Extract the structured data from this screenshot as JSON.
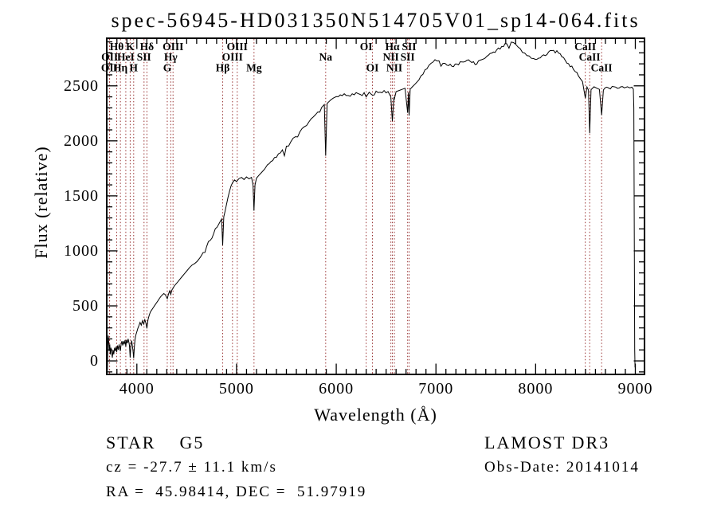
{
  "title": "spec-56945-HD031350N514705V01_sp14-064.fits",
  "footer": {
    "class_label": "STAR    G5",
    "cz": "cz = -27.7 ± 11.1 km/s",
    "ra_dec": "RA =  45.98414, DEC =  51.97919",
    "survey": "LAMOST DR3",
    "obs_date": "Obs-Date: 20141014"
  },
  "chart_data": {
    "type": "line",
    "title": "spec-56945-HD031350N514705V01_sp14-064.fits",
    "xlabel": "Wavelength (Å)",
    "ylabel": "Flux (relative)",
    "xlim": [
      3690,
      9100
    ],
    "ylim": [
      -130,
      2940
    ],
    "xticks": [
      4000,
      5000,
      6000,
      7000,
      8000,
      9000
    ],
    "yticks": [
      0,
      500,
      1000,
      1500,
      2000,
      2500
    ],
    "xminor": 100,
    "yminor": 100,
    "grid": false,
    "legend": "none",
    "line_color": "#000000",
    "frame_color": "#000000",
    "spectral_line_color": "#993333",
    "spectral_lines": [
      {
        "name": "OII",
        "wavelength": 3725,
        "row": 3
      },
      {
        "name": "OII",
        "wavelength": 3727,
        "row": 2
      },
      {
        "name": "Hθ",
        "wavelength": 3798,
        "row": 1
      },
      {
        "name": "Hη",
        "wavelength": 3835,
        "row": 3
      },
      {
        "name": "HeI",
        "wavelength": 3889,
        "row": 2
      },
      {
        "name": "K",
        "wavelength": 3933,
        "row": 1
      },
      {
        "name": "H",
        "wavelength": 3968,
        "row": 3
      },
      {
        "name": "SII",
        "wavelength": 4072,
        "row": 2
      },
      {
        "name": "Hδ",
        "wavelength": 4101,
        "row": 1
      },
      {
        "name": "G",
        "wavelength": 4305,
        "row": 3
      },
      {
        "name": "Hγ",
        "wavelength": 4340,
        "row": 2
      },
      {
        "name": "OIII",
        "wavelength": 4363,
        "row": 1
      },
      {
        "name": "Hβ",
        "wavelength": 4861,
        "row": 3
      },
      {
        "name": "OIII",
        "wavelength": 4959,
        "row": 2
      },
      {
        "name": "OIII",
        "wavelength": 5007,
        "row": 1
      },
      {
        "name": "Mg",
        "wavelength": 5175,
        "row": 3
      },
      {
        "name": "Na",
        "wavelength": 5894,
        "row": 2
      },
      {
        "name": "OI",
        "wavelength": 6300,
        "row": 1
      },
      {
        "name": "OI",
        "wavelength": 6363,
        "row": 3
      },
      {
        "name": "NII",
        "wavelength": 6548,
        "row": 2
      },
      {
        "name": "Hα",
        "wavelength": 6563,
        "row": 1
      },
      {
        "name": "NII",
        "wavelength": 6583,
        "row": 3
      },
      {
        "name": "SII",
        "wavelength": 6716,
        "row": 2
      },
      {
        "name": "SII",
        "wavelength": 6731,
        "row": 1
      },
      {
        "name": "CaII",
        "wavelength": 8498,
        "row": 1
      },
      {
        "name": "CaII",
        "wavelength": 8542,
        "row": 2
      },
      {
        "name": "CaII",
        "wavelength": 8662,
        "row": 3
      }
    ],
    "noise": [
      {
        "upto": 4000,
        "amp": 60
      },
      {
        "upto": 4500,
        "amp": 40
      },
      {
        "upto": 5000,
        "amp": 34
      },
      {
        "upto": 5900,
        "amp": 26
      },
      {
        "upto": 6800,
        "amp": 22
      },
      {
        "upto": 8400,
        "amp": 17
      },
      {
        "upto": 8985,
        "amp": 16
      },
      {
        "upto": 9100,
        "amp": 5
      }
    ],
    "spectrum_points": [
      [
        3700,
        50
      ],
      [
        3704,
        -90
      ],
      [
        3708,
        140
      ],
      [
        3713,
        230
      ],
      [
        3718,
        170
      ],
      [
        3723,
        90
      ],
      [
        3728,
        150
      ],
      [
        3734,
        60
      ],
      [
        3740,
        120
      ],
      [
        3747,
        80
      ],
      [
        3754,
        30
      ],
      [
        3761,
        100
      ],
      [
        3768,
        60
      ],
      [
        3776,
        120
      ],
      [
        3784,
        90
      ],
      [
        3792,
        130
      ],
      [
        3798,
        80
      ],
      [
        3806,
        140
      ],
      [
        3814,
        100
      ],
      [
        3822,
        150
      ],
      [
        3830,
        110
      ],
      [
        3835,
        90
      ],
      [
        3842,
        150
      ],
      [
        3850,
        180
      ],
      [
        3858,
        140
      ],
      [
        3866,
        180
      ],
      [
        3874,
        150
      ],
      [
        3882,
        190
      ],
      [
        3889,
        130
      ],
      [
        3896,
        190
      ],
      [
        3904,
        160
      ],
      [
        3912,
        200
      ],
      [
        3920,
        170
      ],
      [
        3926,
        140
      ],
      [
        3933,
        30
      ],
      [
        3940,
        140
      ],
      [
        3948,
        185
      ],
      [
        3956,
        130
      ],
      [
        3962,
        90
      ],
      [
        3968,
        25
      ],
      [
        3975,
        130
      ],
      [
        3982,
        195
      ],
      [
        3990,
        235
      ],
      [
        4000,
        265
      ],
      [
        4010,
        295
      ],
      [
        4020,
        320
      ],
      [
        4032,
        350
      ],
      [
        4044,
        325
      ],
      [
        4056,
        365
      ],
      [
        4068,
        335
      ],
      [
        4080,
        375
      ],
      [
        4090,
        345
      ],
      [
        4101,
        295
      ],
      [
        4112,
        375
      ],
      [
        4124,
        415
      ],
      [
        4136,
        445
      ],
      [
        4150,
        465
      ],
      [
        4165,
        485
      ],
      [
        4180,
        505
      ],
      [
        4195,
        525
      ],
      [
        4210,
        545
      ],
      [
        4225,
        565
      ],
      [
        4240,
        585
      ],
      [
        4255,
        600
      ],
      [
        4270,
        612
      ],
      [
        4285,
        602
      ],
      [
        4305,
        565
      ],
      [
        4318,
        610
      ],
      [
        4330,
        638
      ],
      [
        4340,
        605
      ],
      [
        4352,
        645
      ],
      [
        4363,
        660
      ],
      [
        4375,
        680
      ],
      [
        4390,
        697
      ],
      [
        4410,
        718
      ],
      [
        4430,
        740
      ],
      [
        4455,
        768
      ],
      [
        4480,
        795
      ],
      [
        4505,
        822
      ],
      [
        4530,
        850
      ],
      [
        4555,
        872
      ],
      [
        4580,
        885
      ],
      [
        4605,
        905
      ],
      [
        4635,
        940
      ],
      [
        4665,
        985
      ],
      [
        4700,
        1040
      ],
      [
        4735,
        1095
      ],
      [
        4770,
        1155
      ],
      [
        4805,
        1215
      ],
      [
        4835,
        1265
      ],
      [
        4850,
        1290
      ],
      [
        4861,
        1050
      ],
      [
        4872,
        1310
      ],
      [
        4885,
        1360
      ],
      [
        4900,
        1425
      ],
      [
        4915,
        1490
      ],
      [
        4930,
        1545
      ],
      [
        4945,
        1590
      ],
      [
        4960,
        1620
      ],
      [
        4980,
        1645
      ],
      [
        5000,
        1630
      ],
      [
        5025,
        1658
      ],
      [
        5050,
        1668
      ],
      [
        5075,
        1648
      ],
      [
        5100,
        1672
      ],
      [
        5125,
        1655
      ],
      [
        5150,
        1668
      ],
      [
        5165,
        1600
      ],
      [
        5175,
        1365
      ],
      [
        5185,
        1600
      ],
      [
        5200,
        1662
      ],
      [
        5225,
        1688
      ],
      [
        5250,
        1712
      ],
      [
        5280,
        1742
      ],
      [
        5310,
        1782
      ],
      [
        5345,
        1812
      ],
      [
        5380,
        1848
      ],
      [
        5420,
        1882
      ],
      [
        5460,
        1918
      ],
      [
        5500,
        1952
      ],
      [
        5545,
        1992
      ],
      [
        5590,
        2038
      ],
      [
        5635,
        2082
      ],
      [
        5680,
        2128
      ],
      [
        5725,
        2172
      ],
      [
        5770,
        2218
      ],
      [
        5815,
        2262
      ],
      [
        5855,
        2305
      ],
      [
        5880,
        2330
      ],
      [
        5894,
        1865
      ],
      [
        5908,
        2340
      ],
      [
        5925,
        2355
      ],
      [
        5945,
        2372
      ],
      [
        5970,
        2388
      ],
      [
        6000,
        2402
      ],
      [
        6040,
        2418
      ],
      [
        6080,
        2428
      ],
      [
        6120,
        2412
      ],
      [
        6160,
        2428
      ],
      [
        6200,
        2438
      ],
      [
        6240,
        2422
      ],
      [
        6280,
        2438
      ],
      [
        6300,
        2400
      ],
      [
        6330,
        2442
      ],
      [
        6363,
        2415
      ],
      [
        6400,
        2452
      ],
      [
        6440,
        2442
      ],
      [
        6480,
        2458
      ],
      [
        6520,
        2448
      ],
      [
        6548,
        2400
      ],
      [
        6563,
        2180
      ],
      [
        6578,
        2395
      ],
      [
        6583,
        2380
      ],
      [
        6600,
        2448
      ],
      [
        6630,
        2458
      ],
      [
        6660,
        2468
      ],
      [
        6690,
        2478
      ],
      [
        6716,
        2255
      ],
      [
        6724,
        2440
      ],
      [
        6731,
        2230
      ],
      [
        6742,
        2470
      ],
      [
        6760,
        2488
      ],
      [
        6790,
        2515
      ],
      [
        6830,
        2555
      ],
      [
        6870,
        2605
      ],
      [
        6910,
        2655
      ],
      [
        6950,
        2705
      ],
      [
        6990,
        2738
      ],
      [
        7030,
        2728
      ],
      [
        7070,
        2705
      ],
      [
        7110,
        2688
      ],
      [
        7160,
        2678
      ],
      [
        7210,
        2698
      ],
      [
        7260,
        2718
      ],
      [
        7310,
        2732
      ],
      [
        7360,
        2712
      ],
      [
        7410,
        2698
      ],
      [
        7460,
        2738
      ],
      [
        7510,
        2768
      ],
      [
        7560,
        2798
      ],
      [
        7610,
        2828
      ],
      [
        7660,
        2858
      ],
      [
        7710,
        2882
      ],
      [
        7755,
        2898
      ],
      [
        7800,
        2878
      ],
      [
        7845,
        2838
      ],
      [
        7890,
        2798
      ],
      [
        7935,
        2772
      ],
      [
        7980,
        2748
      ],
      [
        8030,
        2752
      ],
      [
        8080,
        2782
      ],
      [
        8130,
        2808
      ],
      [
        8180,
        2822
      ],
      [
        8230,
        2798
      ],
      [
        8280,
        2758
      ],
      [
        8330,
        2702
      ],
      [
        8380,
        2648
      ],
      [
        8430,
        2588
      ],
      [
        8470,
        2538
      ],
      [
        8498,
        2390
      ],
      [
        8515,
        2490
      ],
      [
        8530,
        2460
      ],
      [
        8542,
        2070
      ],
      [
        8556,
        2465
      ],
      [
        8585,
        2492
      ],
      [
        8615,
        2478
      ],
      [
        8640,
        2468
      ],
      [
        8662,
        2235
      ],
      [
        8680,
        2462
      ],
      [
        8715,
        2488
      ],
      [
        8750,
        2472
      ],
      [
        8785,
        2492
      ],
      [
        8820,
        2478
      ],
      [
        8855,
        2492
      ],
      [
        8890,
        2482
      ],
      [
        8920,
        2492
      ],
      [
        8945,
        2482
      ],
      [
        8965,
        2488
      ],
      [
        8980,
        2470
      ],
      [
        8985,
        2300
      ],
      [
        8988,
        1500
      ],
      [
        8991,
        700
      ],
      [
        8994,
        100
      ],
      [
        8997,
        -60
      ]
    ]
  }
}
